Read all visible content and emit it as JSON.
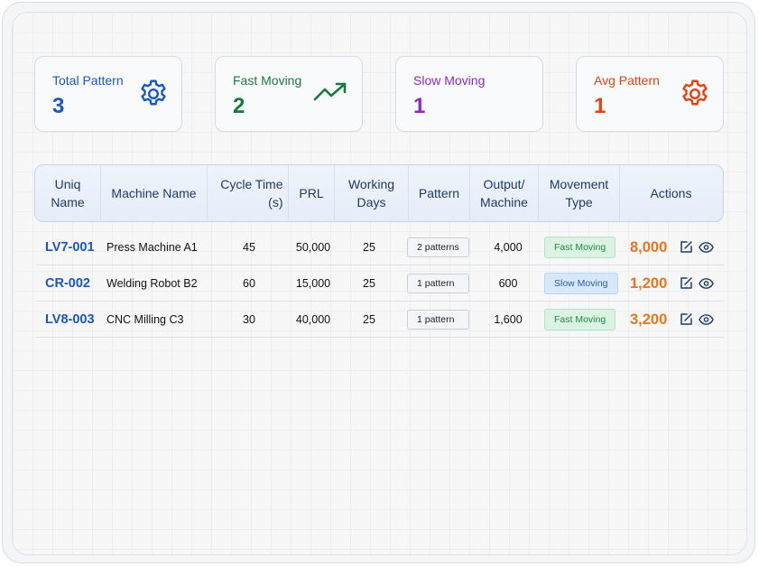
{
  "cards": [
    {
      "label": "Total Pattern",
      "value": "3",
      "color": "#1a56c4",
      "icon": "gear-icon"
    },
    {
      "label": "Fast Moving",
      "value": "2",
      "color": "#177a3d",
      "icon": "trending-up-icon"
    },
    {
      "label": "Slow Moving",
      "value": "1",
      "color": "#9126c9",
      "icon": ""
    },
    {
      "label": "Avg Pattern",
      "value": "1",
      "color": "#e2420f",
      "icon": "gear-icon"
    }
  ],
  "table": {
    "headers": {
      "uniq_name": "Uniq Name",
      "machine_name": "Machine Name",
      "cycle_time": "Cycle Time (s)",
      "prl": "PRL",
      "working_days": "Working Days",
      "pattern": "Pattern",
      "output": "Output/ Machine",
      "movement": "Movement Type",
      "actions": "Actions"
    },
    "rows": [
      {
        "id": "LV7-001",
        "machine": "Press Machine A1",
        "cycle": "45",
        "prl": "50,000",
        "days": "25",
        "pattern": "2 patterns",
        "output": "4,000",
        "movement": "Fast Moving",
        "action_value": "8,000"
      },
      {
        "id": "CR-002",
        "machine": "Welding Robot B2",
        "cycle": "60",
        "prl": "15,000",
        "days": "25",
        "pattern": "1 pattern",
        "output": "600",
        "movement": "Slow Moving",
        "action_value": "1,200"
      },
      {
        "id": "LV8-003",
        "machine": "CNC Milling C3",
        "cycle": "30",
        "prl": "40,000",
        "days": "25",
        "pattern": "1 pattern",
        "output": "1,600",
        "movement": "Fast Moving",
        "action_value": "3,200"
      }
    ]
  },
  "icons": {
    "edit": "edit-icon",
    "view": "eye-icon"
  }
}
